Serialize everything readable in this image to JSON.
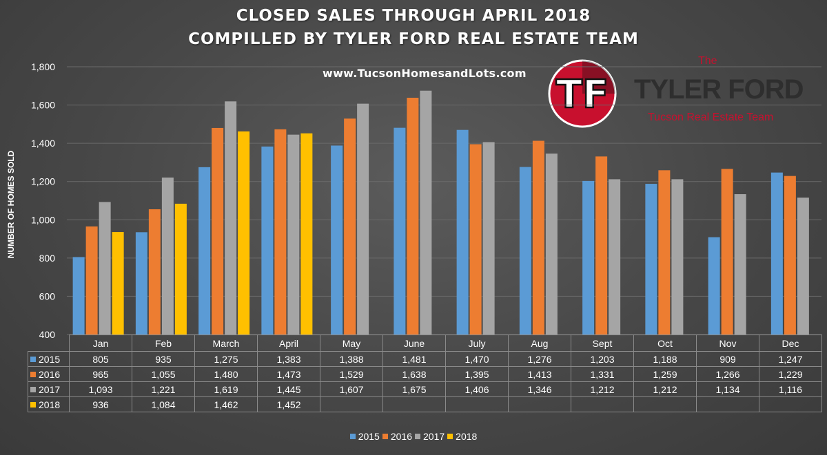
{
  "title_lines": [
    "CLOSED SALES THROUGH APRIL 2018",
    "COMPILLED BY TYLER FORD REAL ESTATE TEAM"
  ],
  "website": "www.TucsonHomesandLots.com",
  "logo": {
    "monogram": "TF",
    "the": "The",
    "name": "TYLER FORD",
    "team": "Tucson Real Estate Team"
  },
  "chart_data": {
    "type": "bar",
    "title": "CLOSED SALES THROUGH APRIL 2018",
    "subtitle": "COMPILLED BY TYLER FORD REAL ESTATE TEAM",
    "ylabel": "NUMBER OF HOMES SOLD",
    "xlabel": "",
    "ylim": [
      400,
      1800
    ],
    "yticks": [
      400,
      600,
      800,
      1000,
      1200,
      1400,
      1600,
      1800
    ],
    "ytick_labels": [
      "400",
      "600",
      "800",
      "1,000",
      "1,200",
      "1,400",
      "1,600",
      "1,800"
    ],
    "grid": true,
    "legend_position": "bottom",
    "categories": [
      "Jan",
      "Feb",
      "March",
      "April",
      "May",
      "June",
      "July",
      "Aug",
      "Sept",
      "Oct",
      "Nov",
      "Dec"
    ],
    "series": [
      {
        "name": "2015",
        "color": "#5b9bd5",
        "values": [
          805,
          935,
          1275,
          1383,
          1388,
          1481,
          1470,
          1276,
          1203,
          1188,
          909,
          1247
        ],
        "labels": [
          "805",
          "935",
          "1,275",
          "1,383",
          "1,388",
          "1,481",
          "1,470",
          "1,276",
          "1,203",
          "1,188",
          "909",
          "1,247"
        ]
      },
      {
        "name": "2016",
        "color": "#ed7d31",
        "values": [
          965,
          1055,
          1480,
          1473,
          1529,
          1638,
          1395,
          1413,
          1331,
          1259,
          1266,
          1229
        ],
        "labels": [
          "965",
          "1,055",
          "1,480",
          "1,473",
          "1,529",
          "1,638",
          "1,395",
          "1,413",
          "1,331",
          "1,259",
          "1,266",
          "1,229"
        ]
      },
      {
        "name": "2017",
        "color": "#a5a5a5",
        "values": [
          1093,
          1221,
          1619,
          1445,
          1607,
          1675,
          1406,
          1346,
          1212,
          1212,
          1134,
          1116
        ],
        "labels": [
          "1,093",
          "1,221",
          "1,619",
          "1,445",
          "1,607",
          "1,675",
          "1,406",
          "1,346",
          "1,212",
          "1,212",
          "1,134",
          "1,116"
        ]
      },
      {
        "name": "2018",
        "color": "#ffc000",
        "values": [
          936,
          1084,
          1462,
          1452,
          null,
          null,
          null,
          null,
          null,
          null,
          null,
          null
        ],
        "labels": [
          "936",
          "1,084",
          "1,462",
          "1,452",
          "",
          "",
          "",
          "",
          "",
          "",
          "",
          ""
        ]
      }
    ]
  }
}
